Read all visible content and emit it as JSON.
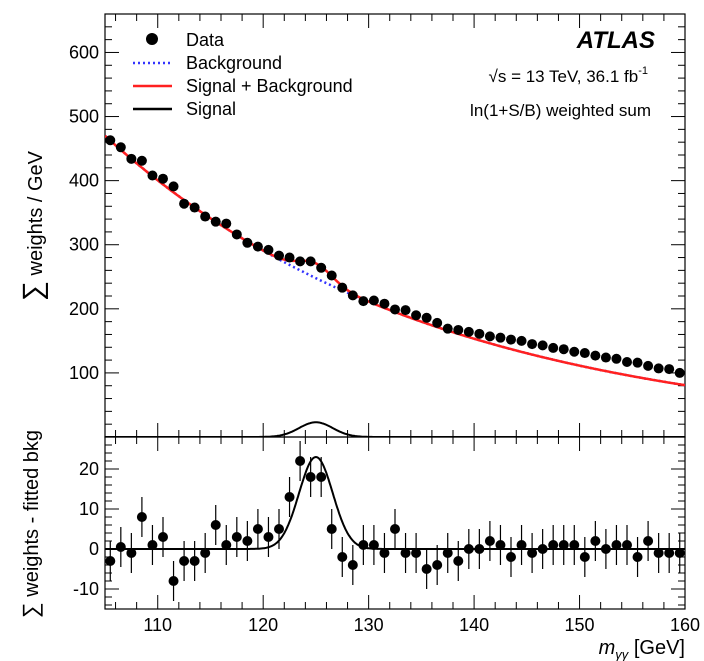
{
  "chart_data": [
    {
      "type": "scatter",
      "panel": "main",
      "ylabel_sum": "∑",
      "ylabel": "weights / GeV",
      "xlim": [
        105,
        160
      ],
      "ylim": [
        0,
        660
      ],
      "yticks": [
        100,
        200,
        300,
        400,
        500,
        600
      ],
      "experiment": "ATLAS",
      "energy_label": "√s = 13 TeV, 36.1 fb",
      "energy_sup": "-1",
      "method_label": "ln(1+S/B) weighted sum",
      "legend": [
        {
          "label": "Data",
          "style": "marker",
          "color": "#000000"
        },
        {
          "label": "Background",
          "style": "dotted",
          "color": "#3333ff"
        },
        {
          "label": "Signal + Background",
          "style": "solid",
          "color": "#ff2020"
        },
        {
          "label": "Signal",
          "style": "solid",
          "color": "#000000"
        }
      ],
      "background": {
        "a": 470,
        "k": 0.032
      },
      "signal": {
        "mean": 125,
        "sigma": 1.6,
        "amplitude": 23
      },
      "series": [
        {
          "name": "Data",
          "x": [
            105.5,
            106.5,
            107.5,
            108.5,
            109.5,
            110.5,
            111.5,
            112.5,
            113.5,
            114.5,
            115.5,
            116.5,
            117.5,
            118.5,
            119.5,
            120.5,
            121.5,
            122.5,
            123.5,
            124.5,
            125.5,
            126.5,
            127.5,
            128.5,
            129.5,
            130.5,
            131.5,
            132.5,
            133.5,
            134.5,
            135.5,
            136.5,
            137.5,
            138.5,
            139.5,
            140.5,
            141.5,
            142.5,
            143.5,
            144.5,
            145.5,
            146.5,
            147.5,
            148.5,
            149.5,
            150.5,
            151.5,
            152.5,
            153.5,
            154.5,
            155.5,
            156.5,
            157.5,
            158.5,
            159.5
          ],
          "y": [
            463,
            452,
            434,
            431,
            408,
            403,
            391,
            364,
            358,
            344,
            336,
            333,
            316,
            303,
            297,
            292,
            283,
            280,
            274,
            274,
            264,
            252,
            233,
            221,
            212,
            213,
            208,
            199,
            198,
            190,
            186,
            178,
            169,
            167,
            164,
            161,
            157,
            155,
            152,
            150,
            145,
            143,
            139,
            137,
            133,
            131,
            127,
            124,
            122,
            117,
            116,
            111,
            107,
            106,
            100
          ]
        }
      ]
    },
    {
      "type": "scatter",
      "panel": "ratio",
      "ylabel_sum": "∑",
      "ylabel": "weights - fitted bkg",
      "xlabel": "m",
      "xlabel_sub": "γγ",
      "xlabel_unit": "[GeV]",
      "xlim": [
        105,
        160
      ],
      "ylim": [
        -15,
        28
      ],
      "yticks": [
        -10,
        0,
        10,
        20
      ],
      "xticks": [
        110,
        120,
        130,
        140,
        150,
        160
      ],
      "series": [
        {
          "name": "Data",
          "x": [
            105.5,
            106.5,
            107.5,
            108.5,
            109.5,
            110.5,
            111.5,
            112.5,
            113.5,
            114.5,
            115.5,
            116.5,
            117.5,
            118.5,
            119.5,
            120.5,
            121.5,
            122.5,
            123.5,
            124.5,
            125.5,
            126.5,
            127.5,
            128.5,
            129.5,
            130.5,
            131.5,
            132.5,
            133.5,
            134.5,
            135.5,
            136.5,
            137.5,
            138.5,
            139.5,
            140.5,
            141.5,
            142.5,
            143.5,
            144.5,
            145.5,
            146.5,
            147.5,
            148.5,
            149.5,
            150.5,
            151.5,
            152.5,
            153.5,
            154.5,
            155.5,
            156.5,
            157.5,
            158.5,
            159.5
          ],
          "y": [
            -3,
            0.5,
            -1,
            8,
            1,
            3,
            -8,
            -3,
            -3,
            -1,
            6,
            1,
            3,
            2,
            5,
            3,
            5,
            13,
            22,
            18,
            18,
            5,
            -2,
            -4,
            1,
            1,
            -1,
            5,
            -1,
            -1,
            -5,
            -4,
            -1,
            -3,
            0,
            0,
            2,
            1,
            -2,
            1,
            -1,
            0,
            1,
            1,
            1,
            -2,
            2,
            0,
            1,
            1,
            -2,
            2,
            -1,
            -1,
            -1
          ],
          "yerr": 5
        }
      ]
    }
  ]
}
